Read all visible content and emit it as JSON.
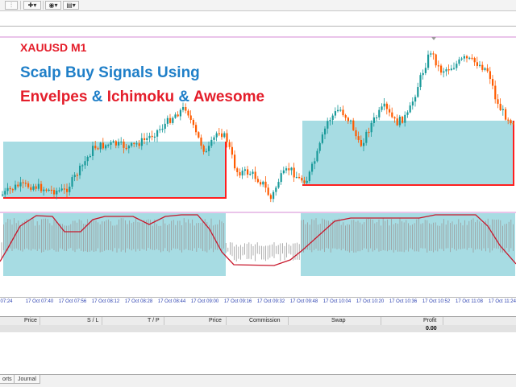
{
  "toolbar": {
    "items": [
      {
        "name": "properties-icon",
        "glyph": "⫶"
      },
      {
        "name": "add-indicator-icon",
        "glyph": "✚▾"
      },
      {
        "name": "period-icon",
        "glyph": "◉▾"
      },
      {
        "name": "templates-icon",
        "glyph": "▤▾"
      }
    ]
  },
  "chart": {
    "symbol_title": "XAUUSD M1",
    "subtitle": "Scalp Buy Signals Using",
    "indicators": {
      "part1": "Envelpes",
      "sep1": " & ",
      "part2": "Ichimoku",
      "sep2": " & ",
      "part3": "Awesome"
    },
    "colors": {
      "bull": "#1a9a9a",
      "bear": "#ff5b00",
      "zone_fill": "#a7dce3",
      "zone_border": "#ff1f1f",
      "signal_line": "#c8182c",
      "histogram": "#9b9b9b",
      "separator": "#d58ad5",
      "title_red": "#e41e2b",
      "title_blue": "#1f7fc8"
    },
    "time_labels": [
      "07:24",
      "17 Oct 07:40",
      "17 Oct 07:56",
      "17 Oct 08:12",
      "17 Oct 08:28",
      "17 Oct 08:44",
      "17 Oct 09:00",
      "17 Oct 09:16",
      "17 Oct 09:32",
      "17 Oct 09:48",
      "17 Oct 10:04",
      "17 Oct 10:20",
      "17 Oct 10:36",
      "17 Oct 10:52",
      "17 Oct 11:08",
      "17 Oct 11:24"
    ]
  },
  "terminal": {
    "columns": [
      "Price",
      "S / L",
      "T / P",
      "Price",
      "Commission",
      "Swap",
      "Profit"
    ],
    "profit_total": "0.00",
    "tabs": [
      "orts",
      "Journal"
    ]
  }
}
